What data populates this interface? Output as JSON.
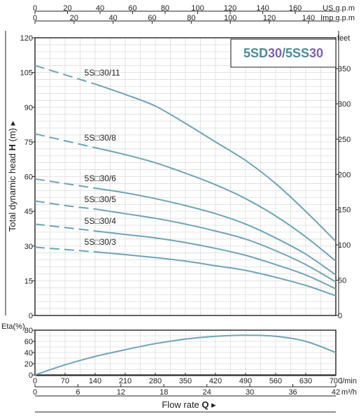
{
  "chart_data": [
    {
      "type": "line",
      "name": "pump-performance",
      "model_box": {
        "parts": [
          {
            "text": "5SD",
            "color": "#4a8a9a"
          },
          {
            "text": "30",
            "color": "#8060b0"
          },
          {
            "text": "/",
            "color": "#4a8a9a"
          },
          {
            "text": "5SS",
            "color": "#4a8a9a"
          },
          {
            "text": "30",
            "color": "#8060b0"
          }
        ]
      },
      "ylabel": "Total dynamic head",
      "ylabel_symbol": "H",
      "ylabel_unit": "(m)",
      "ylim": [
        0,
        120
      ],
      "yticks": [
        "0",
        "15",
        "30",
        "45",
        "60",
        "75",
        "90",
        "105",
        "120"
      ],
      "right_axis": {
        "unit": "feet",
        "ticks": [
          "0",
          "50",
          "100",
          "150",
          "200",
          "250",
          "300",
          "350"
        ]
      },
      "top_axes": [
        {
          "unit": "US g.p.m",
          "ticks": [
            "0",
            "20",
            "40",
            "60",
            "80",
            "100",
            "120",
            "140",
            "160"
          ],
          "max": 184.9
        },
        {
          "unit": "Imp g.p.m",
          "ticks": [
            "0",
            "20",
            "40",
            "60",
            "80",
            "100",
            "120",
            "140"
          ],
          "max": 154.0
        }
      ],
      "xlim": [
        0,
        700
      ],
      "curve_color": "#6ea4b8",
      "series": [
        {
          "name": "5S□30/11",
          "x": [
            0,
            70,
            140,
            210,
            280,
            350,
            420,
            490,
            560,
            630,
            700
          ],
          "y": [
            108,
            104,
            100,
            95.5,
            90.5,
            83,
            75,
            67,
            57,
            45,
            32
          ],
          "dashed_until": 140
        },
        {
          "name": "5S□30/8",
          "x": [
            0,
            70,
            140,
            210,
            280,
            350,
            420,
            490,
            560,
            630,
            700
          ],
          "y": [
            78.5,
            75.5,
            72.5,
            69.5,
            66,
            61.5,
            56.5,
            50.5,
            43,
            34,
            23.5
          ],
          "dashed_until": 140
        },
        {
          "name": "5S□30/6",
          "x": [
            0,
            70,
            140,
            210,
            280,
            350,
            420,
            490,
            560,
            630,
            700
          ],
          "y": [
            59,
            57,
            55,
            53,
            50.5,
            47.5,
            44,
            39.5,
            33.5,
            26.5,
            17.5
          ],
          "dashed_until": 140
        },
        {
          "name": "5S□30/5",
          "x": [
            0,
            70,
            140,
            210,
            280,
            350,
            420,
            490,
            560,
            630,
            700
          ],
          "y": [
            49.5,
            47.5,
            46,
            44,
            42,
            39.5,
            36.5,
            33,
            28,
            22,
            14.5
          ],
          "dashed_until": 140
        },
        {
          "name": "5S□30/4",
          "x": [
            0,
            70,
            140,
            210,
            280,
            350,
            420,
            490,
            560,
            630,
            700
          ],
          "y": [
            39.5,
            38,
            36.5,
            35,
            33.5,
            31.5,
            29,
            26,
            22,
            17.5,
            11.5
          ],
          "dashed_until": 140
        },
        {
          "name": "5S□30/3",
          "x": [
            0,
            70,
            140,
            210,
            280,
            350,
            420,
            490,
            560,
            630,
            700
          ],
          "y": [
            29.5,
            28.5,
            27.5,
            26.3,
            25,
            23.5,
            21.5,
            19.5,
            16.5,
            13,
            8.5
          ],
          "dashed_until": 140
        }
      ]
    },
    {
      "type": "line",
      "name": "efficiency",
      "ylabel": "Eta(%)",
      "ylim": [
        0,
        80
      ],
      "yticks": [
        "0",
        "20",
        "40",
        "60",
        "80"
      ],
      "xlim": [
        0,
        700
      ],
      "curve_color": "#6ea4b8",
      "series": [
        {
          "x": [
            0,
            70,
            140,
            210,
            280,
            350,
            420,
            490,
            560,
            630,
            700
          ],
          "y": [
            0,
            18,
            33,
            45,
            56,
            64,
            69,
            71,
            69,
            60,
            40
          ]
        }
      ]
    }
  ],
  "bottom_axes": [
    {
      "unit": "l/min",
      "ticks": [
        "0",
        "70",
        "140",
        "210",
        "280",
        "350",
        "420",
        "490",
        "560",
        "630",
        "700"
      ],
      "max": 700
    },
    {
      "unit": "m³/h",
      "ticks": [
        "0",
        "6",
        "12",
        "18",
        "24",
        "30",
        "36",
        "42"
      ],
      "max": 42
    }
  ],
  "xlabel": "Flow rate",
  "xlabel_symbol": "Q"
}
